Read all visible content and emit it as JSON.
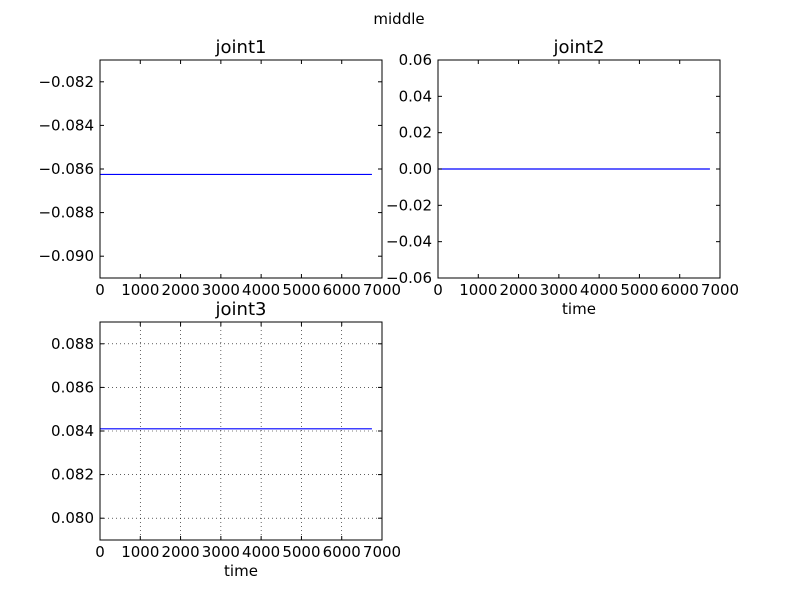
{
  "figure": {
    "suptitle": "middle"
  },
  "chart_data": [
    {
      "type": "line",
      "title": "joint1",
      "xlabel": "",
      "ylabel": "",
      "xlim": [
        0,
        7000
      ],
      "ylim": [
        -0.091,
        -0.081
      ],
      "xticks": [
        0,
        1000,
        2000,
        3000,
        4000,
        5000,
        6000,
        7000
      ],
      "xtick_labels": [
        "0",
        "1000",
        "2000",
        "3000",
        "4000",
        "5000",
        "6000",
        "7000"
      ],
      "yticks": [
        -0.082,
        -0.084,
        -0.086,
        -0.088,
        -0.09
      ],
      "ytick_labels": [
        "−0.082",
        "−0.084",
        "−0.086",
        "−0.088",
        "−0.090"
      ],
      "grid": false,
      "series": [
        {
          "color": "#0000ff",
          "x": [
            0,
            6750
          ],
          "y": [
            -0.08625,
            -0.08625
          ]
        }
      ]
    },
    {
      "type": "line",
      "title": "joint2",
      "xlabel": "time",
      "ylabel": "",
      "xlim": [
        0,
        7000
      ],
      "ylim": [
        -0.06,
        0.06
      ],
      "xticks": [
        0,
        1000,
        2000,
        3000,
        4000,
        5000,
        6000,
        7000
      ],
      "xtick_labels": [
        "0",
        "1000",
        "2000",
        "3000",
        "4000",
        "5000",
        "6000",
        "7000"
      ],
      "yticks": [
        0.06,
        0.04,
        0.02,
        0.0,
        -0.02,
        -0.04,
        -0.06
      ],
      "ytick_labels": [
        "0.06",
        "0.04",
        "0.02",
        "0.00",
        "−0.02",
        "−0.04",
        "−0.06"
      ],
      "grid": false,
      "series": [
        {
          "color": "#0000ff",
          "x": [
            0,
            6750
          ],
          "y": [
            0.0,
            0.0
          ]
        }
      ]
    },
    {
      "type": "line",
      "title": "joint3",
      "xlabel": "time",
      "ylabel": "",
      "xlim": [
        0,
        7000
      ],
      "ylim": [
        0.079,
        0.089
      ],
      "xticks": [
        0,
        1000,
        2000,
        3000,
        4000,
        5000,
        6000,
        7000
      ],
      "xtick_labels": [
        "0",
        "1000",
        "2000",
        "3000",
        "4000",
        "5000",
        "6000",
        "7000"
      ],
      "yticks": [
        0.088,
        0.086,
        0.084,
        0.082,
        0.08
      ],
      "ytick_labels": [
        "0.088",
        "0.086",
        "0.084",
        "0.082",
        "0.080"
      ],
      "grid": true,
      "series": [
        {
          "color": "#0000ff",
          "x": [
            0,
            6750
          ],
          "y": [
            0.0841,
            0.0841
          ]
        }
      ]
    }
  ]
}
